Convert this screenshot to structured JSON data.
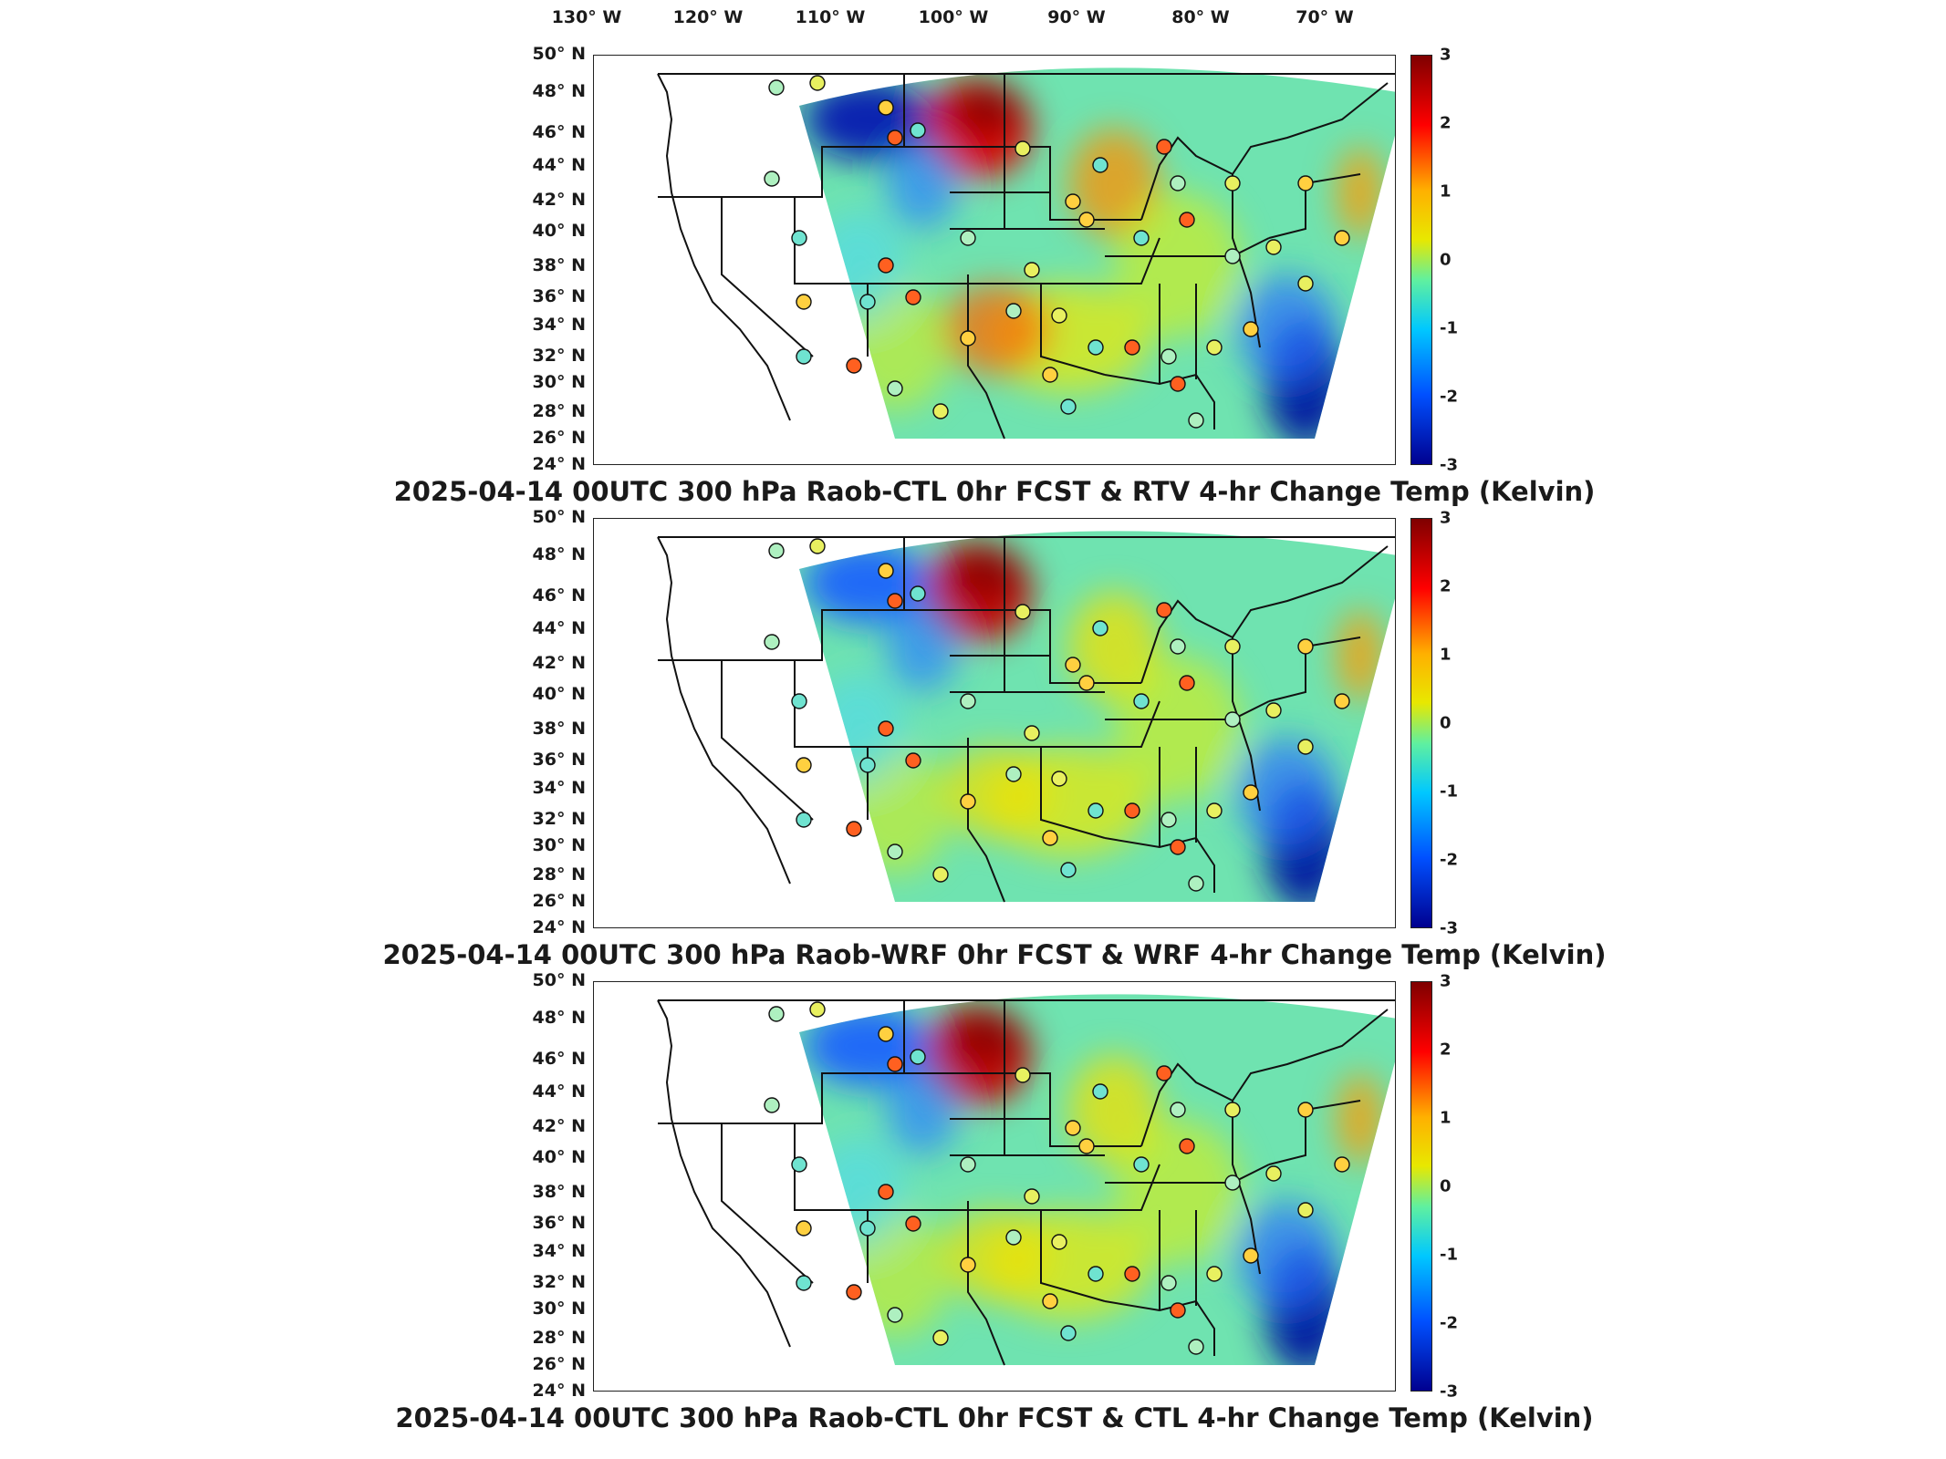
{
  "lon_labels": [
    "130° W",
    "120° W",
    "110° W",
    "100° W",
    "90° W",
    "80° W",
    "70° W"
  ],
  "lat_labels": [
    "50° N",
    "48° N",
    "46° N",
    "44° N",
    "42° N",
    "40° N",
    "38° N",
    "36° N",
    "34° N",
    "32° N",
    "30° N",
    "28° N",
    "26° N",
    "24° N"
  ],
  "colorbar": {
    "ticks": [
      "3",
      "2",
      "1",
      "0",
      "-1",
      "-2",
      "-3"
    ],
    "range": [
      -3,
      3
    ]
  },
  "panels": [
    {
      "title": "2025-04-14 00UTC 300 hPa Raob-CTL 0hr FCST & RTV 4-hr Change Temp (Kelvin)"
    },
    {
      "title": "2025-04-14 00UTC 300 hPa Raob-WRF 0hr FCST & WRF 4-hr Change Temp (Kelvin)"
    },
    {
      "title": "2025-04-14 00UTC 300 hPa Raob-CTL 0hr FCST & CTL 4-hr Change Temp (Kelvin)"
    }
  ],
  "colors": {
    "warm": "#d00000",
    "cold": "#0018c8",
    "neutral": "#7ee8a0",
    "land_outline": "#111111"
  }
}
